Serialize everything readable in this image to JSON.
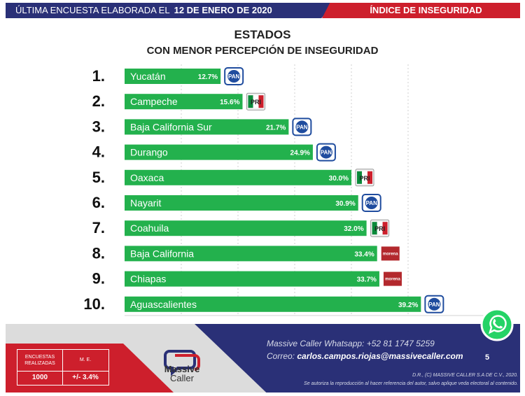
{
  "header": {
    "survey_label": "ÚLTIMA ENCUESTA ELABORADA EL",
    "survey_date": "12 DE ENERO DE 2020",
    "section": "ÍNDICE DE INSEGURIDAD"
  },
  "chart_data": {
    "type": "bar",
    "orientation": "horizontal",
    "title": "ESTADOS",
    "subtitle": "CON MENOR PERCEPCIÓN DE INSEGURIDAD",
    "categories": [
      "Yucatán",
      "Campeche",
      "Baja California Sur",
      "Durango",
      "Oaxaca",
      "Nayarit",
      "Coahuila",
      "Baja California",
      "Chiapas",
      "Aguascalientes"
    ],
    "ranks": [
      "1.",
      "2.",
      "3.",
      "4.",
      "5.",
      "6.",
      "7.",
      "8.",
      "9.",
      "10."
    ],
    "values": [
      12.7,
      15.6,
      21.7,
      24.9,
      30.0,
      30.9,
      32.0,
      33.4,
      33.7,
      39.2
    ],
    "value_labels": [
      "12.7%",
      "15.6%",
      "21.7%",
      "24.9%",
      "30.0%",
      "30.9%",
      "32.0%",
      "33.4%",
      "33.7%",
      "39.2%"
    ],
    "parties": [
      "PAN",
      "PRI",
      "PAN",
      "PAN",
      "PRI",
      "PAN",
      "PRI",
      "morena",
      "morena",
      "PAN"
    ],
    "xlim": [
      0,
      45
    ],
    "grid": true
  },
  "footer": {
    "stats": {
      "surveys_label": "ENCUESTAS REALIZADAS",
      "me_label": "M. E.",
      "surveys_value": "1000",
      "me_value": "+/- 3.4%"
    },
    "brand_name": "Massive",
    "brand_sub": "Caller",
    "whatsapp_line": "Massive Caller Whatsapp: +52   81 1747 5259",
    "email_prefix": "Correo:",
    "email": "carlos.campos.riojas@massivecaller.com",
    "page_number": "5",
    "legal_1": "D.R., (C) MASSIVE CALLER S.A DE C.V., 2020.",
    "legal_2": "Se autoriza la reproducción al hacer referencia del autor, salvo aplique veda electoral al contenido."
  },
  "colors": {
    "bar": "#23b14d",
    "navy": "#2a3077",
    "red": "#cd1f2c",
    "pan_blue": "#1f4c9e",
    "pri_green": "#0a8a3a",
    "morena": "#b3282d",
    "whatsapp": "#25d366"
  },
  "icons": {
    "pan": "pan-party-logo",
    "pri": "pri-party-logo",
    "morena": "morena-party-logo",
    "whatsapp": "whatsapp-icon"
  }
}
